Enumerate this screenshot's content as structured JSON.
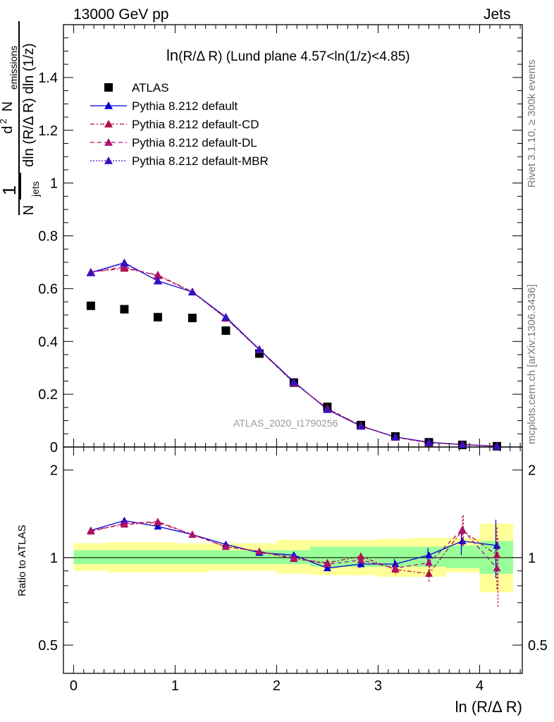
{
  "header": {
    "left": "13000 GeV pp",
    "right": "Jets"
  },
  "side_labels": {
    "rivet": "Rivet 3.1.10, ≥ 300k events",
    "mcplots": "mcplots.cern.ch [arXiv:1306.3436]"
  },
  "chart_data": {
    "type": "scatter",
    "title": "ln(R/Δ R) (Lund plane 4.57<ln(1/z)<4.85)",
    "title_main": "ln",
    "title_rest": "(R/Δ R) (Lund plane 4.57<ln(1/z)<4.85)",
    "watermark": "ATLAS_2020_I1790256",
    "xlabel": "ln (R/Δ R)",
    "ylabel_top": "d² N emissions / N jets dln (R/Δ R) dln (1/z)",
    "ylabel_parts": {
      "one": "1",
      "numerator_d": "d",
      "numerator_exp": "2",
      "numerator_n": "N",
      "numerator_sub": "emissions",
      "denominator_n": "N",
      "denominator_sub": "jets",
      "denominator_rest": "dln (R/Δ R) dln (1/z)"
    },
    "ylabel_bottom": "Ratio to ATLAS",
    "xlim": [
      -0.1,
      4.42
    ],
    "ylim_top": [
      0,
      1.6
    ],
    "ylim_bottom_log": [
      0.4,
      2.4
    ],
    "x_ticks": [
      "0",
      "1",
      "2",
      "3",
      "4"
    ],
    "y_ticks_top": [
      "0",
      "0.2",
      "0.4",
      "0.6",
      "0.8",
      "1",
      "1.2",
      "1.4"
    ],
    "y_ticks_bottom": [
      "0.5",
      "1",
      "2"
    ],
    "x": [
      0.17,
      0.5,
      0.83,
      1.17,
      1.5,
      1.83,
      2.17,
      2.5,
      2.83,
      3.17,
      3.5,
      3.83,
      4.17
    ],
    "series": [
      {
        "name": "ATLAS",
        "marker": "square",
        "color": "#000000",
        "dash": "",
        "values": [
          0.535,
          0.522,
          0.492,
          0.489,
          0.441,
          0.354,
          0.244,
          0.152,
          0.083,
          0.04,
          0.018,
          0.008,
          0.003
        ]
      },
      {
        "name": "Pythia 8.212 default",
        "marker": "triangle",
        "color": "#0000d8",
        "dash": "",
        "values": [
          0.661,
          0.698,
          0.629,
          0.588,
          0.492,
          0.37,
          0.247,
          0.142,
          0.079,
          0.038,
          0.018,
          0.009,
          0.003
        ]
      },
      {
        "name": "Pythia 8.212 default-CD",
        "marker": "triangle",
        "color": "#b0103e",
        "dash": "6,3,2,3",
        "values": [
          0.663,
          0.677,
          0.652,
          0.588,
          0.488,
          0.368,
          0.243,
          0.146,
          0.081,
          0.037,
          0.017,
          0.01,
          0.003
        ]
      },
      {
        "name": "Pythia 8.212 default-DL",
        "marker": "triangle",
        "color": "#b0106e",
        "dash": "6,4",
        "values": [
          0.662,
          0.682,
          0.649,
          0.587,
          0.489,
          0.369,
          0.244,
          0.145,
          0.08,
          0.037,
          0.016,
          0.01,
          0.003
        ]
      },
      {
        "name": "Pythia 8.212 default-MBR",
        "marker": "triangle",
        "color": "#3a10c0",
        "dash": "2,2",
        "values": [
          0.66,
          0.696,
          0.63,
          0.587,
          0.491,
          0.369,
          0.246,
          0.142,
          0.079,
          0.038,
          0.018,
          0.009,
          0.003
        ]
      }
    ],
    "ratio_series": [
      {
        "name": "Pythia 8.212 default",
        "color": "#0000d8",
        "dash": "",
        "values": [
          1.24,
          1.34,
          1.28,
          1.2,
          1.11,
          1.04,
          1.02,
          0.92,
          0.95,
          0.95,
          1.02,
          1.14,
          1.1
        ],
        "err": [
          0.01,
          0.02,
          0.01,
          0.01,
          0.01,
          0.01,
          0.01,
          0.02,
          0.03,
          0.04,
          0.06,
          0.12,
          0.25
        ]
      },
      {
        "name": "Pythia 8.212 default-CD",
        "color": "#b0103e",
        "dash": "6,3,2,3",
        "values": [
          1.24,
          1.3,
          1.32,
          1.2,
          1.09,
          1.05,
          0.99,
          0.96,
          1.01,
          0.91,
          0.88,
          1.24,
          1.02
        ],
        "err": [
          0.01,
          0.02,
          0.01,
          0.01,
          0.01,
          0.01,
          0.01,
          0.02,
          0.03,
          0.04,
          0.06,
          0.15,
          0.25
        ]
      },
      {
        "name": "Pythia 8.212 default-DL",
        "color": "#b0106e",
        "dash": "6,4",
        "values": [
          1.23,
          1.31,
          1.33,
          1.2,
          1.09,
          1.05,
          1.0,
          0.95,
          0.98,
          0.92,
          0.96,
          1.25,
          0.92
        ],
        "err": [
          0.01,
          0.02,
          0.01,
          0.01,
          0.01,
          0.01,
          0.01,
          0.02,
          0.03,
          0.04,
          0.06,
          0.15,
          0.25
        ]
      }
    ],
    "bands": {
      "x_edges": [
        0.0,
        0.33,
        0.67,
        1.0,
        1.33,
        1.67,
        2.0,
        2.33,
        2.67,
        3.0,
        3.33,
        3.67,
        4.0,
        4.33
      ],
      "green_lo": [
        0.95,
        0.95,
        0.95,
        0.95,
        0.95,
        0.95,
        0.95,
        0.93,
        0.93,
        0.93,
        0.93,
        0.92,
        0.88
      ],
      "green_hi": [
        1.06,
        1.06,
        1.06,
        1.06,
        1.06,
        1.06,
        1.06,
        1.09,
        1.09,
        1.09,
        1.09,
        1.1,
        1.14
      ],
      "yellow_lo": [
        0.9,
        0.89,
        0.89,
        0.89,
        0.9,
        0.9,
        0.88,
        0.87,
        0.87,
        0.86,
        0.86,
        0.89,
        0.76
      ],
      "yellow_hi": [
        1.12,
        1.13,
        1.13,
        1.12,
        1.12,
        1.12,
        1.15,
        1.15,
        1.15,
        1.16,
        1.17,
        1.17,
        1.31
      ]
    }
  }
}
